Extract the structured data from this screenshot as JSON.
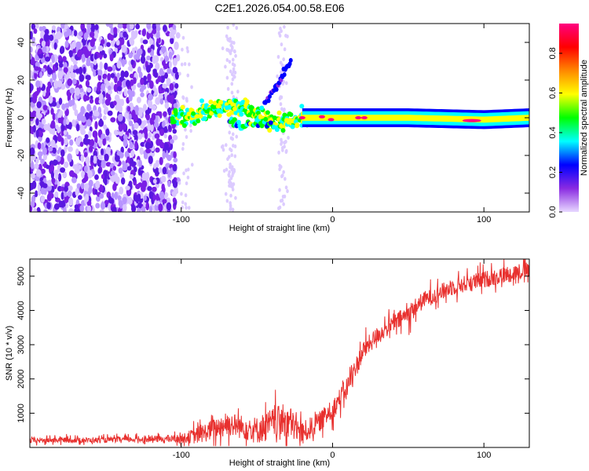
{
  "title": "C2E1.2026.054.00.58.E06",
  "chart_data": [
    {
      "type": "heatmap",
      "title": "C2E1.2026.054.00.58.E06",
      "xlabel": "Height of straight line (km)",
      "ylabel": "Frequency (Hz)",
      "xlim": [
        -200,
        130
      ],
      "ylim": [
        -50,
        50
      ],
      "x_ticks": [
        -100,
        0,
        100
      ],
      "y_ticks": [
        -40,
        -20,
        0,
        20,
        40
      ],
      "colorbar": {
        "label": "Normalized spectral amplitude",
        "range": [
          0,
          0.95
        ],
        "ticks": [
          0.0,
          0.2,
          0.4,
          0.6,
          0.8
        ],
        "colormap": [
          "#e8d8ff",
          "#8a2be2",
          "#0000ff",
          "#00ffff",
          "#00ff00",
          "#ffff00",
          "#ff8800",
          "#ff0000",
          "#ff0080"
        ]
      },
      "features": {
        "noise_region_x": [
          -200,
          -102
        ],
        "carrier_track": [
          {
            "x": -105,
            "y": 0
          },
          {
            "x": -95,
            "y": 1
          },
          {
            "x": -85,
            "y": 3
          },
          {
            "x": -75,
            "y": 5
          },
          {
            "x": -65,
            "y": 6
          },
          {
            "x": -55,
            "y": 4
          },
          {
            "x": -40,
            "y": -3
          },
          {
            "x": -30,
            "y": -2
          },
          {
            "x": -20,
            "y": 0
          },
          {
            "x": 0,
            "y": 0
          },
          {
            "x": 50,
            "y": 0
          },
          {
            "x": 100,
            "y": -1
          },
          {
            "x": 130,
            "y": 0
          }
        ],
        "lower_branch": [
          {
            "x": -68,
            "y": -2
          },
          {
            "x": -60,
            "y": -4
          },
          {
            "x": -50,
            "y": -3
          },
          {
            "x": -40,
            "y": -3
          }
        ],
        "upward_branch": [
          {
            "x": -45,
            "y": 8
          },
          {
            "x": -38,
            "y": 15
          },
          {
            "x": -33,
            "y": 23
          },
          {
            "x": -27,
            "y": 30
          }
        ],
        "peaks": [
          {
            "x": -20,
            "y": 0,
            "amplitude": 0.9
          },
          {
            "x": -7,
            "y": 0.5,
            "amplitude": 0.9
          },
          {
            "x": -1,
            "y": -1,
            "amplitude": 0.9
          },
          {
            "x": 17,
            "y": 0,
            "amplitude": 0.9
          },
          {
            "x": 21,
            "y": 0,
            "amplitude": 0.9
          },
          {
            "x": 92,
            "y": -1.5,
            "amplitude": 0.95
          }
        ]
      }
    },
    {
      "type": "line",
      "xlabel": "Height of straight line (km)",
      "ylabel": "SNR (10 * v/v)",
      "xlim": [
        -200,
        130
      ],
      "ylim": [
        0,
        5500
      ],
      "x_ticks": [
        -100,
        0,
        100
      ],
      "y_ticks": [
        1000,
        2000,
        3000,
        4000,
        5000
      ],
      "color": "#e8302e",
      "series": [
        {
          "name": "SNR",
          "x": [
            -200,
            -180,
            -160,
            -140,
            -120,
            -100,
            -90,
            -80,
            -70,
            -60,
            -50,
            -40,
            -30,
            -20,
            -10,
            0,
            10,
            20,
            30,
            40,
            50,
            60,
            70,
            80,
            90,
            100,
            110,
            120,
            130
          ],
          "y": [
            200,
            220,
            210,
            230,
            240,
            260,
            350,
            500,
            700,
            600,
            500,
            700,
            800,
            400,
            700,
            1100,
            1800,
            2800,
            3300,
            3600,
            3900,
            4300,
            4500,
            4700,
            4800,
            4900,
            5000,
            5100,
            5200
          ],
          "noise": [
            80,
            80,
            80,
            80,
            90,
            120,
            250,
            300,
            350,
            350,
            400,
            450,
            500,
            350,
            300,
            300,
            300,
            300,
            250,
            250,
            300,
            250,
            250,
            250,
            250,
            250,
            250,
            250,
            250
          ]
        }
      ]
    }
  ]
}
